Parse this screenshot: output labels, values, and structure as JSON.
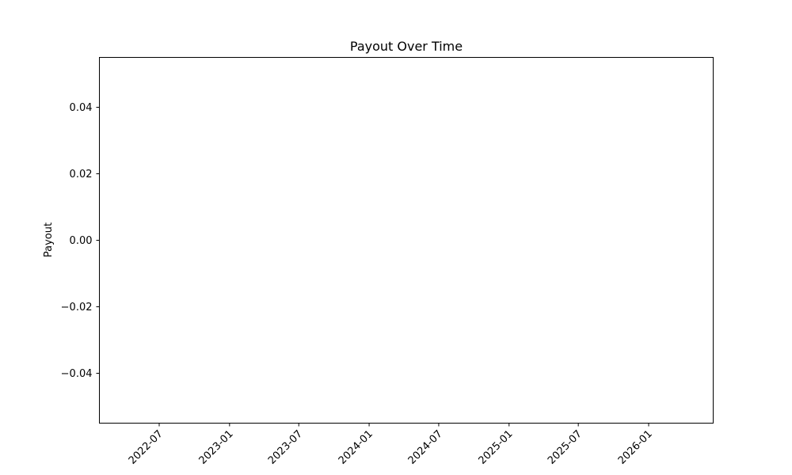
{
  "chart_data": {
    "type": "line",
    "title": "Payout Over Time",
    "xlabel": "",
    "ylabel": "Payout",
    "x_axis": {
      "scale": "date",
      "ticks": [
        "2022-07",
        "2023-01",
        "2023-07",
        "2024-01",
        "2024-07",
        "2025-01",
        "2025-07",
        "2026-01"
      ]
    },
    "y_axis": {
      "ylim": [
        -0.055,
        0.055
      ],
      "ticks": [
        "0.04",
        "0.02",
        "0.00",
        "−0.02",
        "−0.04"
      ]
    },
    "series": [],
    "grid": false,
    "legend": false
  }
}
